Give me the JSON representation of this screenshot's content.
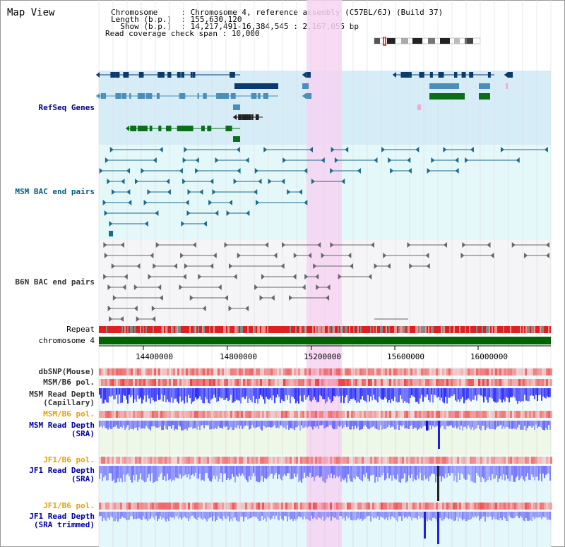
{
  "header": {
    "title": "Map View",
    "lines": [
      {
        "key": "Chromosome     ",
        "value": ": Chromosome 4, reference assembly (C57BL/6J) (Build 37)"
      },
      {
        "key": "Length (b.p.)  ",
        "value": ": 155,630,120"
      },
      {
        "key": "  Show (b.p.)  ",
        "value": ": 14,217,491-16,384,545 : 2,167,055 bp"
      },
      {
        "key": "Read coverage check span",
        "value": " : 10,000"
      }
    ]
  },
  "tracks": {
    "refseq": "RefSeq Genes",
    "msm_bac": "MSM BAC end pairs",
    "b6n_bac": "B6N BAC end pairs",
    "repeat": "Repeat",
    "chromosome": "chromosome 4",
    "dbsnp": "dbSNP(Mouse)",
    "msm_b6_pol_1": "MSM/B6 pol.",
    "msm_read_depth_cap_1": "MSM Read Depth",
    "msm_read_depth_cap_2": "(Capillary)",
    "msm_b6_pol_2": "MSM/B6 pol.",
    "msm_read_depth_sra_1": "MSM Read Depth",
    "msm_read_depth_sra_2": "(SRA)",
    "jf1_b6_pol_1": "JF1/B6 pol.",
    "jf1_read_depth_sra_1": "JF1 Read Depth",
    "jf1_read_depth_sra_2": "(SRA)",
    "jf1_b6_pol_2": "JF1/B6 pol.",
    "jf1_read_depth_trim_1": "JF1 Read Depth",
    "jf1_read_depth_trim_2": "(SRA trimmed)"
  },
  "axis": {
    "ticks": [
      "14400000",
      "14800000",
      "15200000",
      "15600000",
      "16000000"
    ]
  },
  "colors": {
    "refseq_label": "#00008b",
    "msm_label": "#006080",
    "b6n_label": "#333333",
    "orange_label": "#e8a000",
    "blue_label": "#0000a0",
    "highlight": "#f7d4f3",
    "refseq_bg": "#d6ecf7",
    "msm_bg": "#e4f7f9",
    "b6n_bg": "#f5f5f7"
  }
}
